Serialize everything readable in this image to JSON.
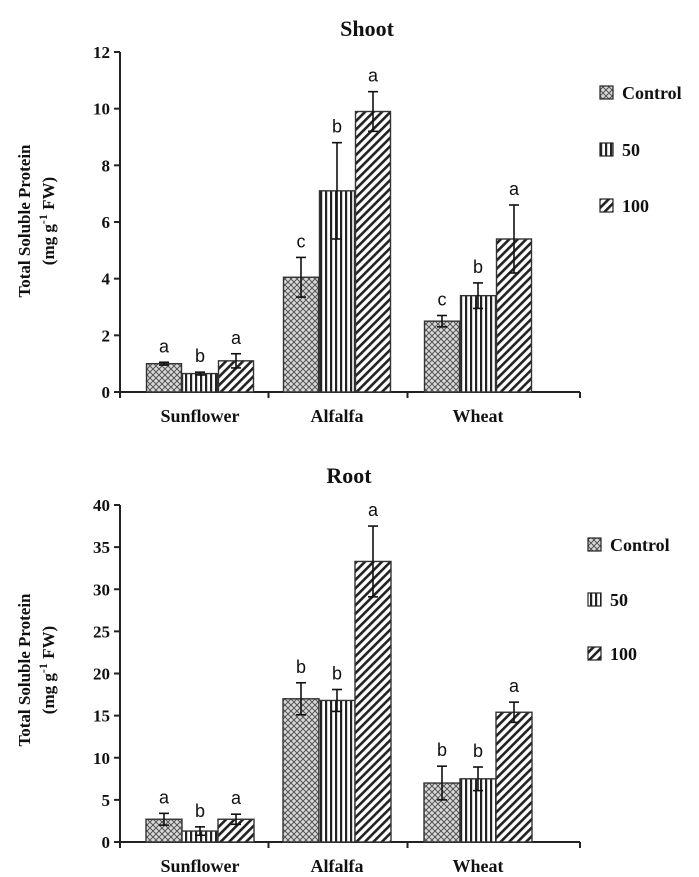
{
  "chart_data": [
    {
      "type": "bar",
      "title": "Shoot",
      "ylabel_line1": "Total Soluble Protein",
      "ylabel_line2": "(mg g-1 FW)",
      "ylim": [
        0,
        12
      ],
      "yticks": [
        0,
        2,
        4,
        6,
        8,
        10,
        12
      ],
      "categories": [
        "Sunflower",
        "Alfalfa",
        "Wheat"
      ],
      "legend_position": "right",
      "series": [
        {
          "name": "Control",
          "pattern": "crosshatch",
          "values": [
            1.0,
            4.05,
            2.5
          ],
          "errors": [
            0.05,
            0.7,
            0.2
          ],
          "letters": [
            "a",
            "c",
            "c"
          ]
        },
        {
          "name": "50",
          "pattern": "vertical",
          "values": [
            0.65,
            7.1,
            3.4
          ],
          "errors": [
            0.05,
            1.7,
            0.45
          ],
          "letters": [
            "b",
            "b",
            "b"
          ]
        },
        {
          "name": "100",
          "pattern": "diagonal",
          "values": [
            1.1,
            9.9,
            5.4
          ],
          "errors": [
            0.25,
            0.7,
            1.2
          ],
          "letters": [
            "a",
            "a",
            "a"
          ]
        }
      ]
    },
    {
      "type": "bar",
      "title": "Root",
      "ylabel_line1": "Total Soluble Protein",
      "ylabel_line2": "(mg g-1 FW)",
      "ylim": [
        0,
        40
      ],
      "yticks": [
        0,
        5,
        10,
        15,
        20,
        25,
        30,
        35,
        40
      ],
      "categories": [
        "Sunflower",
        "Alfalfa",
        "Wheat"
      ],
      "legend_position": "right",
      "series": [
        {
          "name": "Control",
          "pattern": "crosshatch",
          "values": [
            2.7,
            17.0,
            7.0
          ],
          "errors": [
            0.7,
            1.9,
            2.0
          ],
          "letters": [
            "a",
            "b",
            "b"
          ]
        },
        {
          "name": "50",
          "pattern": "vertical",
          "values": [
            1.3,
            16.8,
            7.5
          ],
          "errors": [
            0.5,
            1.3,
            1.4
          ],
          "letters": [
            "b",
            "b",
            "b"
          ]
        },
        {
          "name": "100",
          "pattern": "diagonal",
          "values": [
            2.7,
            33.3,
            15.4
          ],
          "errors": [
            0.6,
            4.2,
            1.2
          ],
          "letters": [
            "a",
            "a",
            "a"
          ]
        }
      ]
    }
  ]
}
